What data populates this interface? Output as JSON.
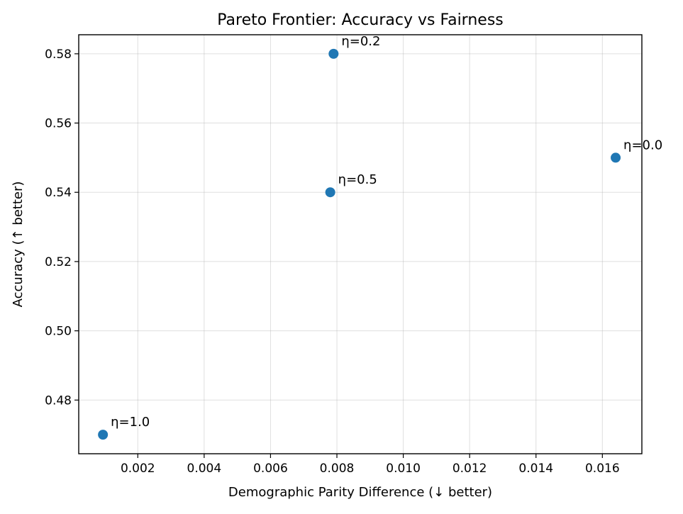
{
  "chart_data": {
    "type": "scatter",
    "title": "Pareto Frontier: Accuracy vs Fairness",
    "xlabel": "Demographic Parity Difference (↓ better)",
    "ylabel": "Accuracy (↑ better)",
    "xlim": [
      0.00022,
      0.01719
    ],
    "ylim": [
      0.4645,
      0.5855
    ],
    "x_ticks": [
      0.002,
      0.004,
      0.006,
      0.008,
      0.01,
      0.012,
      0.014,
      0.016
    ],
    "x_tick_labels": [
      "0.002",
      "0.004",
      "0.006",
      "0.008",
      "0.010",
      "0.012",
      "0.014",
      "0.016"
    ],
    "y_ticks": [
      0.48,
      0.5,
      0.52,
      0.54,
      0.56,
      0.58
    ],
    "y_tick_labels": [
      "0.48",
      "0.50",
      "0.52",
      "0.54",
      "0.56",
      "0.58"
    ],
    "grid": true,
    "marker_color": "#1f77b4",
    "points": [
      {
        "label": "η=0.0",
        "x": 0.0164,
        "y": 0.55
      },
      {
        "label": "η=0.2",
        "x": 0.0079,
        "y": 0.58
      },
      {
        "label": "η=0.5",
        "x": 0.0078,
        "y": 0.54
      },
      {
        "label": "η=1.0",
        "x": 0.00095,
        "y": 0.47
      }
    ]
  }
}
